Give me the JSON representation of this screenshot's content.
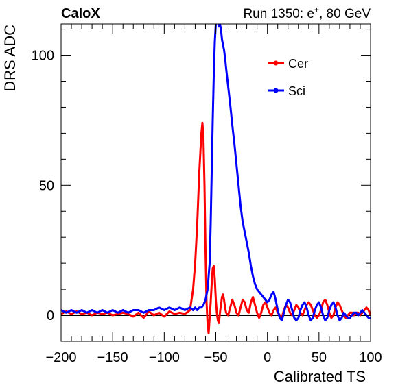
{
  "header": {
    "brand": "CaloX",
    "run_prefix": "Run 1350: e",
    "run_superscript": "+",
    "run_suffix": ", 80 GeV"
  },
  "chart_data": {
    "type": "line",
    "title": "",
    "xlabel": "Calibrated TS",
    "ylabel": "DRS ADC",
    "xlim": [
      -200,
      100
    ],
    "ylim": [
      -10,
      112
    ],
    "xticks": [
      -200,
      -150,
      -100,
      -50,
      0,
      50,
      100
    ],
    "xtick_labels": [
      "−200",
      "−150",
      "−100",
      "−50",
      "0",
      "50",
      "100"
    ],
    "yticks": [
      0,
      50,
      100
    ],
    "ytick_labels": [
      "0",
      "50",
      "100"
    ],
    "baseline": 0,
    "legend_position": "top-right",
    "grid": false,
    "series": [
      {
        "name": "Cer",
        "color": "#ff0000",
        "x": [
          -200,
          -195,
          -190,
          -185,
          -180,
          -175,
          -170,
          -165,
          -160,
          -155,
          -150,
          -145,
          -140,
          -135,
          -130,
          -125,
          -120,
          -115,
          -110,
          -105,
          -100,
          -95,
          -90,
          -85,
          -80,
          -75,
          -72,
          -70,
          -68,
          -66,
          -64,
          -63,
          -62,
          -61,
          -60,
          -59,
          -58,
          -57,
          -56,
          -55,
          -54,
          -53,
          -52,
          -51,
          -50,
          -49,
          -48,
          -47,
          -46,
          -45,
          -44,
          -43,
          -42,
          -41,
          -40,
          -38,
          -36,
          -34,
          -32,
          -30,
          -28,
          -26,
          -24,
          -22,
          -20,
          -18,
          -16,
          -14,
          -12,
          -10,
          -8,
          -6,
          -4,
          -2,
          0,
          2,
          4,
          6,
          8,
          10,
          12,
          14,
          16,
          18,
          20,
          22,
          24,
          26,
          28,
          30,
          32,
          34,
          36,
          38,
          40,
          42,
          44,
          46,
          48,
          50,
          52,
          54,
          56,
          58,
          60,
          62,
          64,
          66,
          68,
          70,
          72,
          74,
          76,
          78,
          80,
          82,
          84,
          86,
          88,
          90,
          92,
          94,
          96,
          98,
          100
        ],
        "y": [
          0.5,
          1.5,
          0.5,
          1.5,
          0.5,
          1,
          0,
          1,
          0.5,
          1,
          0,
          0.5,
          1,
          0.5,
          -0.5,
          1,
          -1,
          1.5,
          0,
          1,
          -0.5,
          1.5,
          0.5,
          1,
          0.5,
          2,
          10,
          20,
          35,
          55,
          70,
          74,
          68,
          50,
          25,
          5,
          -3,
          -7,
          -1,
          5,
          12,
          18,
          19,
          14,
          6,
          1,
          -2,
          -3,
          1,
          4,
          7,
          8,
          6,
          3,
          1,
          0,
          3,
          6,
          4,
          1,
          0,
          3,
          6,
          5,
          2,
          1,
          5,
          7,
          4,
          1,
          -1,
          1,
          4,
          5,
          3,
          1,
          0,
          2,
          3,
          1,
          0,
          -1,
          2,
          4,
          3,
          1,
          0,
          2,
          4,
          3,
          1,
          0,
          2,
          4,
          5,
          4,
          2,
          0,
          -1,
          0,
          2,
          5,
          6,
          4,
          1,
          -1,
          0,
          3,
          5,
          4,
          2,
          0,
          -1,
          0,
          1,
          1,
          0,
          1,
          1,
          0,
          1,
          2,
          3,
          2,
          0
        ]
      },
      {
        "name": "Sci",
        "color": "#0000ff",
        "x": [
          -200,
          -195,
          -190,
          -185,
          -180,
          -175,
          -170,
          -165,
          -160,
          -155,
          -150,
          -145,
          -140,
          -135,
          -130,
          -125,
          -120,
          -115,
          -110,
          -105,
          -100,
          -95,
          -90,
          -85,
          -80,
          -75,
          -72,
          -70,
          -68,
          -66,
          -64,
          -62,
          -60,
          -58,
          -56,
          -55,
          -54,
          -53,
          -52,
          -51,
          -50,
          -49,
          -48,
          -47,
          -46,
          -45,
          -44,
          -43,
          -42,
          -41,
          -40,
          -38,
          -36,
          -34,
          -32,
          -30,
          -28,
          -26,
          -24,
          -22,
          -20,
          -18,
          -16,
          -14,
          -12,
          -10,
          -8,
          -6,
          -4,
          -2,
          0,
          2,
          4,
          6,
          8,
          10,
          12,
          14,
          16,
          18,
          20,
          22,
          24,
          26,
          28,
          30,
          32,
          34,
          36,
          38,
          40,
          42,
          44,
          46,
          48,
          50,
          52,
          54,
          56,
          58,
          60,
          62,
          64,
          66,
          68,
          70,
          72,
          74,
          76,
          78,
          80,
          82,
          84,
          86,
          88,
          90,
          92,
          94,
          96,
          98,
          100
        ],
        "y": [
          2,
          1,
          2,
          1,
          2,
          1,
          2,
          1,
          2,
          1,
          2,
          1,
          2,
          1,
          2,
          2,
          1,
          2,
          2,
          3,
          2,
          3,
          2,
          3,
          2,
          3,
          2,
          3,
          2,
          3,
          3,
          4,
          6,
          10,
          20,
          35,
          55,
          75,
          92,
          105,
          112,
          114,
          113,
          111,
          112,
          110,
          106,
          104,
          102,
          99,
          95,
          88,
          81,
          73,
          66,
          58,
          50,
          42,
          36,
          32,
          28,
          24,
          19,
          15,
          12,
          10,
          9,
          8,
          7,
          6,
          5,
          6,
          8,
          9,
          6,
          2,
          -1,
          -2,
          1,
          4,
          6,
          5,
          2,
          -1,
          -2,
          -1,
          2,
          4,
          5,
          3,
          0,
          -2,
          -1,
          2,
          4,
          5,
          3,
          0,
          -2,
          -1,
          2,
          4,
          5,
          3,
          0,
          -2,
          -1,
          1,
          0,
          -1,
          -1,
          0,
          1,
          1,
          0,
          1,
          2,
          1,
          0,
          -1,
          -1
        ]
      }
    ]
  }
}
